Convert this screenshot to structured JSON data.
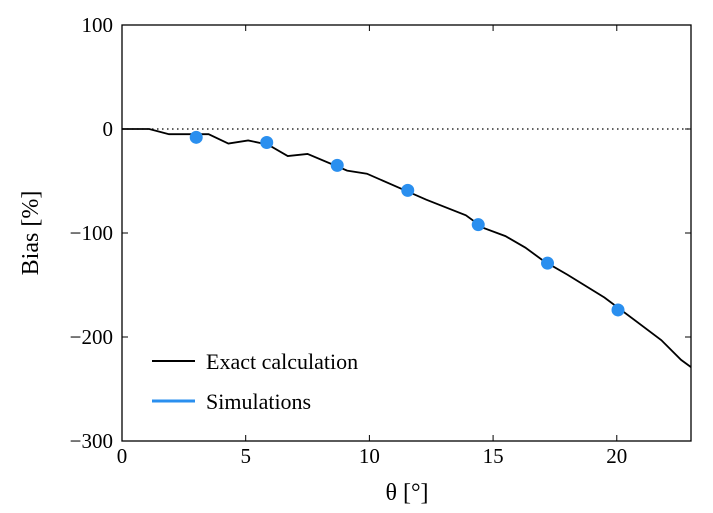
{
  "chart_data": {
    "type": "line",
    "title": "",
    "xlabel": "θ [°]",
    "ylabel": "Bias [%]",
    "xlim": [
      0,
      23
    ],
    "ylim": [
      -300,
      100
    ],
    "xticks": [
      "0",
      "5",
      "10",
      "15",
      "20"
    ],
    "xtick_values": [
      0,
      5,
      10,
      15,
      20
    ],
    "yticks": [
      "100",
      "0",
      "−100",
      "−200",
      "−300"
    ],
    "ytick_values": [
      100,
      0,
      -100,
      -200,
      -300
    ],
    "grid": false,
    "legend_position": "lower-left",
    "reference_line": {
      "y": 0,
      "style": "dotted",
      "color": "#000000"
    },
    "series": [
      {
        "name": "Exact calculation",
        "type": "line",
        "color": "#000000",
        "x": [
          0,
          1.1,
          1.9,
          3.5,
          4.3,
          5.1,
          5.9,
          6.7,
          7.5,
          9.1,
          9.9,
          11.25,
          12.3,
          13.9,
          14.6,
          15.5,
          16.3,
          17.05,
          18.0,
          19.5,
          21.8,
          22.6,
          23
        ],
        "y": [
          0,
          0,
          -5,
          -5,
          -14,
          -11,
          -15,
          -26,
          -24,
          -40,
          -43,
          -57,
          -68,
          -83,
          -95,
          -103,
          -114,
          -127,
          -140,
          -162,
          -203,
          -222,
          -229
        ]
      },
      {
        "name": "Simulations",
        "type": "scatter",
        "color": "#2A8FEF",
        "x": [
          3.0,
          5.85,
          8.7,
          11.55,
          14.4,
          17.2,
          20.05
        ],
        "y": [
          -8,
          -13,
          -35,
          -59,
          -92,
          -129,
          -174
        ]
      }
    ]
  }
}
